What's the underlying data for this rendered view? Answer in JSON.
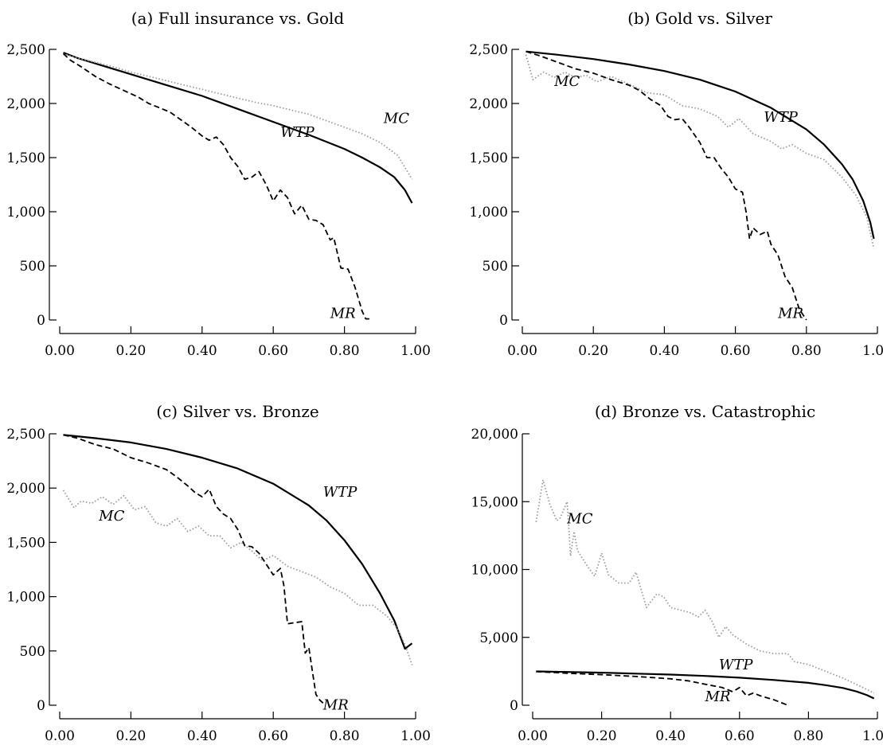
{
  "chart_data": [
    {
      "type": "line",
      "title": "(a) Full insurance vs. Gold",
      "xlim": [
        0,
        1
      ],
      "ylim": [
        0,
        2500
      ],
      "x_ticks": [
        "0.00",
        "0.20",
        "0.40",
        "0.60",
        "0.80",
        "1.00"
      ],
      "y_ticks": [
        "0",
        "500",
        "1,000",
        "1,500",
        "2,000",
        "2,500"
      ],
      "series": [
        {
          "name": "WTP",
          "style": "solid",
          "x": [
            0.01,
            0.05,
            0.1,
            0.2,
            0.3,
            0.4,
            0.5,
            0.6,
            0.7,
            0.8,
            0.85,
            0.9,
            0.94,
            0.97,
            0.99
          ],
          "y": [
            2470,
            2420,
            2370,
            2270,
            2170,
            2070,
            1950,
            1830,
            1710,
            1580,
            1500,
            1410,
            1320,
            1200,
            1080
          ]
        },
        {
          "name": "MC",
          "style": "dotted",
          "x": [
            0.01,
            0.05,
            0.1,
            0.15,
            0.2,
            0.25,
            0.3,
            0.35,
            0.4,
            0.45,
            0.5,
            0.55,
            0.6,
            0.65,
            0.7,
            0.75,
            0.8,
            0.85,
            0.9,
            0.95,
            0.99
          ],
          "y": [
            2460,
            2420,
            2380,
            2340,
            2290,
            2250,
            2210,
            2170,
            2130,
            2090,
            2050,
            2010,
            1980,
            1940,
            1900,
            1840,
            1780,
            1720,
            1640,
            1520,
            1300
          ]
        },
        {
          "name": "MR",
          "style": "dashed",
          "x": [
            0.01,
            0.03,
            0.06,
            0.1,
            0.14,
            0.18,
            0.22,
            0.25,
            0.28,
            0.31,
            0.34,
            0.37,
            0.4,
            0.42,
            0.44,
            0.46,
            0.48,
            0.5,
            0.52,
            0.54,
            0.56,
            0.58,
            0.6,
            0.62,
            0.64,
            0.66,
            0.68,
            0.7,
            0.72,
            0.74,
            0.76,
            0.77,
            0.79,
            0.81,
            0.83,
            0.85,
            0.86,
            0.87
          ],
          "y": [
            2460,
            2400,
            2340,
            2250,
            2180,
            2120,
            2060,
            2000,
            1960,
            1920,
            1850,
            1780,
            1700,
            1660,
            1690,
            1620,
            1500,
            1420,
            1300,
            1320,
            1370,
            1250,
            1100,
            1200,
            1130,
            980,
            1060,
            930,
            920,
            880,
            740,
            760,
            480,
            470,
            300,
            80,
            10,
            10
          ]
        }
      ],
      "labels": [
        {
          "text": "MC",
          "x": 0.91,
          "y": 1820
        },
        {
          "text": "WTP",
          "x": 0.62,
          "y": 1690
        },
        {
          "text": "MR",
          "x": 0.76,
          "y": 20
        }
      ]
    },
    {
      "type": "line",
      "title": "(b) Gold vs. Silver",
      "xlim": [
        0,
        1
      ],
      "ylim": [
        0,
        2500
      ],
      "x_ticks": [
        "0.00",
        "0.20",
        "0.40",
        "0.60",
        "0.80",
        "1.00"
      ],
      "y_ticks": [
        "0",
        "500",
        "1,000",
        "1,500",
        "2,000",
        "2,500"
      ],
      "series": [
        {
          "name": "WTP",
          "style": "solid",
          "x": [
            0.01,
            0.1,
            0.2,
            0.3,
            0.4,
            0.5,
            0.6,
            0.7,
            0.8,
            0.85,
            0.9,
            0.93,
            0.96,
            0.98,
            0.99
          ],
          "y": [
            2480,
            2450,
            2410,
            2360,
            2300,
            2220,
            2110,
            1960,
            1760,
            1620,
            1440,
            1300,
            1100,
            900,
            750
          ]
        },
        {
          "name": "MC",
          "style": "dotted",
          "x": [
            0.01,
            0.03,
            0.06,
            0.09,
            0.12,
            0.15,
            0.18,
            0.21,
            0.25,
            0.3,
            0.35,
            0.4,
            0.45,
            0.5,
            0.55,
            0.58,
            0.61,
            0.65,
            0.7,
            0.73,
            0.76,
            0.8,
            0.85,
            0.9,
            0.94,
            0.97,
            0.99
          ],
          "y": [
            2450,
            2220,
            2290,
            2240,
            2290,
            2240,
            2260,
            2200,
            2250,
            2180,
            2100,
            2080,
            1980,
            1950,
            1880,
            1780,
            1860,
            1720,
            1650,
            1580,
            1620,
            1540,
            1480,
            1320,
            1150,
            950,
            660
          ]
        },
        {
          "name": "MR",
          "style": "dashed",
          "x": [
            0.01,
            0.05,
            0.1,
            0.15,
            0.2,
            0.25,
            0.3,
            0.33,
            0.36,
            0.39,
            0.41,
            0.43,
            0.45,
            0.47,
            0.5,
            0.52,
            0.54,
            0.56,
            0.58,
            0.6,
            0.62,
            0.63,
            0.64,
            0.65,
            0.67,
            0.69,
            0.7,
            0.72,
            0.74,
            0.76,
            0.78,
            0.8
          ],
          "y": [
            2480,
            2440,
            2380,
            2320,
            2280,
            2220,
            2170,
            2120,
            2040,
            1980,
            1880,
            1850,
            1860,
            1780,
            1640,
            1500,
            1500,
            1400,
            1320,
            1210,
            1180,
            1000,
            750,
            850,
            790,
            820,
            700,
            600,
            400,
            300,
            100,
            0
          ]
        }
      ],
      "labels": [
        {
          "text": "MC",
          "x": 0.09,
          "y": 2160
        },
        {
          "text": "WTP",
          "x": 0.68,
          "y": 1830
        },
        {
          "text": "MR",
          "x": 0.72,
          "y": 20
        }
      ]
    },
    {
      "type": "line",
      "title": "(c) Silver vs. Bronze",
      "xlim": [
        0,
        1
      ],
      "ylim": [
        0,
        2500
      ],
      "x_ticks": [
        "0.00",
        "0.20",
        "0.40",
        "0.60",
        "0.80",
        "1.00"
      ],
      "y_ticks": [
        "0",
        "500",
        "1,000",
        "1,500",
        "2,000",
        "2,500"
      ],
      "series": [
        {
          "name": "WTP",
          "style": "solid",
          "x": [
            0.01,
            0.1,
            0.2,
            0.3,
            0.4,
            0.5,
            0.6,
            0.7,
            0.75,
            0.8,
            0.85,
            0.9,
            0.94,
            0.97,
            0.99
          ],
          "y": [
            2490,
            2460,
            2420,
            2360,
            2280,
            2180,
            2040,
            1840,
            1700,
            1520,
            1300,
            1030,
            780,
            520,
            570
          ]
        },
        {
          "name": "MC",
          "style": "dotted",
          "x": [
            0.01,
            0.04,
            0.06,
            0.09,
            0.12,
            0.15,
            0.18,
            0.21,
            0.24,
            0.27,
            0.3,
            0.33,
            0.36,
            0.39,
            0.42,
            0.45,
            0.48,
            0.51,
            0.54,
            0.57,
            0.6,
            0.64,
            0.68,
            0.72,
            0.76,
            0.8,
            0.84,
            0.88,
            0.92,
            0.95,
            0.97,
            0.99
          ],
          "y": [
            1980,
            1820,
            1880,
            1860,
            1920,
            1850,
            1930,
            1800,
            1830,
            1680,
            1650,
            1720,
            1600,
            1650,
            1560,
            1560,
            1450,
            1500,
            1420,
            1330,
            1380,
            1280,
            1230,
            1180,
            1090,
            1030,
            920,
            920,
            820,
            700,
            560,
            370
          ]
        },
        {
          "name": "MR",
          "style": "dashed",
          "x": [
            0.01,
            0.05,
            0.1,
            0.15,
            0.2,
            0.25,
            0.3,
            0.33,
            0.36,
            0.38,
            0.4,
            0.42,
            0.44,
            0.46,
            0.48,
            0.5,
            0.52,
            0.54,
            0.56,
            0.58,
            0.6,
            0.62,
            0.63,
            0.64,
            0.66,
            0.68,
            0.69,
            0.7,
            0.71,
            0.72,
            0.73,
            0.74
          ],
          "y": [
            2490,
            2460,
            2400,
            2360,
            2280,
            2230,
            2170,
            2100,
            2020,
            1960,
            1920,
            1990,
            1830,
            1760,
            1720,
            1620,
            1470,
            1460,
            1400,
            1300,
            1200,
            1260,
            1100,
            750,
            760,
            770,
            480,
            530,
            310,
            100,
            50,
            20
          ]
        }
      ],
      "labels": [
        {
          "text": "MC",
          "x": 0.11,
          "y": 1700
        },
        {
          "text": "WTP",
          "x": 0.74,
          "y": 1920
        },
        {
          "text": "MR",
          "x": 0.74,
          "y": -40
        }
      ]
    },
    {
      "type": "line",
      "title": "(d) Bronze vs. Catastrophic",
      "xlim": [
        0,
        1
      ],
      "ylim": [
        0,
        20000
      ],
      "x_ticks": [
        "0.00",
        "0.20",
        "0.40",
        "0.60",
        "0.80",
        "1.00"
      ],
      "y_ticks": [
        "0",
        "5,000",
        "10,000",
        "15,000",
        "20,000"
      ],
      "series": [
        {
          "name": "WTP",
          "style": "solid",
          "x": [
            0.01,
            0.1,
            0.2,
            0.3,
            0.4,
            0.5,
            0.6,
            0.7,
            0.8,
            0.85,
            0.9,
            0.94,
            0.97,
            0.99
          ],
          "y": [
            2490,
            2450,
            2400,
            2330,
            2260,
            2160,
            2030,
            1860,
            1650,
            1480,
            1270,
            1010,
            740,
            500
          ]
        },
        {
          "name": "MC",
          "style": "dotted",
          "x": [
            0.01,
            0.03,
            0.05,
            0.07,
            0.08,
            0.1,
            0.11,
            0.12,
            0.13,
            0.14,
            0.16,
            0.18,
            0.2,
            0.22,
            0.25,
            0.28,
            0.3,
            0.33,
            0.36,
            0.38,
            0.4,
            0.43,
            0.46,
            0.48,
            0.5,
            0.52,
            0.54,
            0.56,
            0.58,
            0.62,
            0.66,
            0.7,
            0.74,
            0.76,
            0.8,
            0.85,
            0.9,
            0.95,
            0.99
          ],
          "y": [
            13500,
            16600,
            14800,
            13600,
            13800,
            15000,
            11000,
            12800,
            11400,
            11000,
            10200,
            9500,
            11200,
            9600,
            9000,
            9000,
            9800,
            7200,
            8200,
            8000,
            7200,
            7000,
            6800,
            6500,
            7000,
            6200,
            5000,
            5800,
            5200,
            4500,
            4000,
            3800,
            3800,
            3200,
            3000,
            2500,
            2000,
            1400,
            900
          ]
        },
        {
          "name": "MR",
          "style": "dashed",
          "x": [
            0.01,
            0.1,
            0.2,
            0.3,
            0.4,
            0.45,
            0.5,
            0.55,
            0.58,
            0.6,
            0.62,
            0.64,
            0.66,
            0.7,
            0.74
          ],
          "y": [
            2480,
            2360,
            2250,
            2120,
            1950,
            1800,
            1550,
            1300,
            1000,
            1300,
            700,
            900,
            700,
            400,
            0
          ]
        }
      ],
      "labels": [
        {
          "text": "MC",
          "x": 0.1,
          "y": 13400
        },
        {
          "text": "WTP",
          "x": 0.54,
          "y": 2650
        },
        {
          "text": "MR",
          "x": 0.5,
          "y": 300
        }
      ]
    }
  ]
}
